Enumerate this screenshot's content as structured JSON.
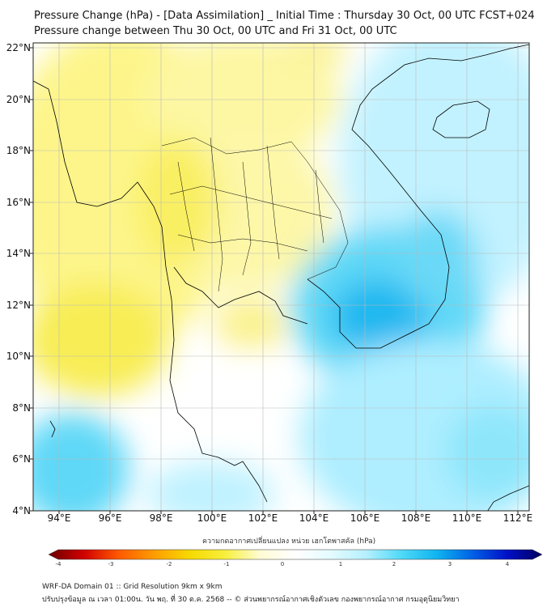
{
  "header": {
    "title_line1": "Pressure Change (hPa) - [Data Assimilation] _ Initial Time : Thursday 30 Oct, 00 UTC FCST+024",
    "title_line2": "Pressure change between Thu 30 Oct, 00 UTC and Fri 31 Oct, 00 UTC"
  },
  "map": {
    "lat_labels": [
      "22°N",
      "20°N",
      "18°N",
      "16°N",
      "14°N",
      "12°N",
      "10°N",
      "8°N",
      "6°N",
      "4°N"
    ],
    "lon_labels": [
      "94°E",
      "96°E",
      "98°E",
      "100°E",
      "102°E",
      "104°E",
      "106°E",
      "108°E",
      "110°E",
      "112°E"
    ],
    "lat_range": [
      4,
      22
    ],
    "lon_range": [
      93,
      112.5
    ],
    "field": "pressure change (hPa)",
    "gridlines": true,
    "colors": {
      "negative": "#f7ef3c",
      "neutral": "#ffffff",
      "positive": "#16c2f2",
      "coastline": "#000000",
      "gridline": "#b9b9b9"
    }
  },
  "colorbar": {
    "title": "ความกดอากาศเปลี่ยนแปลง หน่วย เฮกโตพาสคัล (hPa)",
    "tick_labels": [
      "-4",
      "-3",
      "-2",
      "-1",
      "0",
      "1",
      "2",
      "3",
      "4"
    ],
    "range": [
      -4,
      4
    ],
    "colors": [
      "#6b0000",
      "#d10000",
      "#ff5a00",
      "#ff9d00",
      "#f7d900",
      "#f7ef3c",
      "#fffbd4",
      "#ffffff",
      "#e4fbff",
      "#b6f0ff",
      "#50d9f7",
      "#10b5f0",
      "#0063e6",
      "#0010c8",
      "#00005e"
    ]
  },
  "footer": {
    "line1": "WRF-DA Domain 01 :: Grid Resolution 9km x 9km",
    "line2": "ปรับปรุงข้อมูล ณ เวลา 01:00น. วัน พฤ. ที่ 30 ต.ค. 2568 -- © ส่วนพยากรณ์อากาศเชิงตัวเลข กองพยากรณ์อากาศ กรมอุตุนิยมวิทยา"
  }
}
